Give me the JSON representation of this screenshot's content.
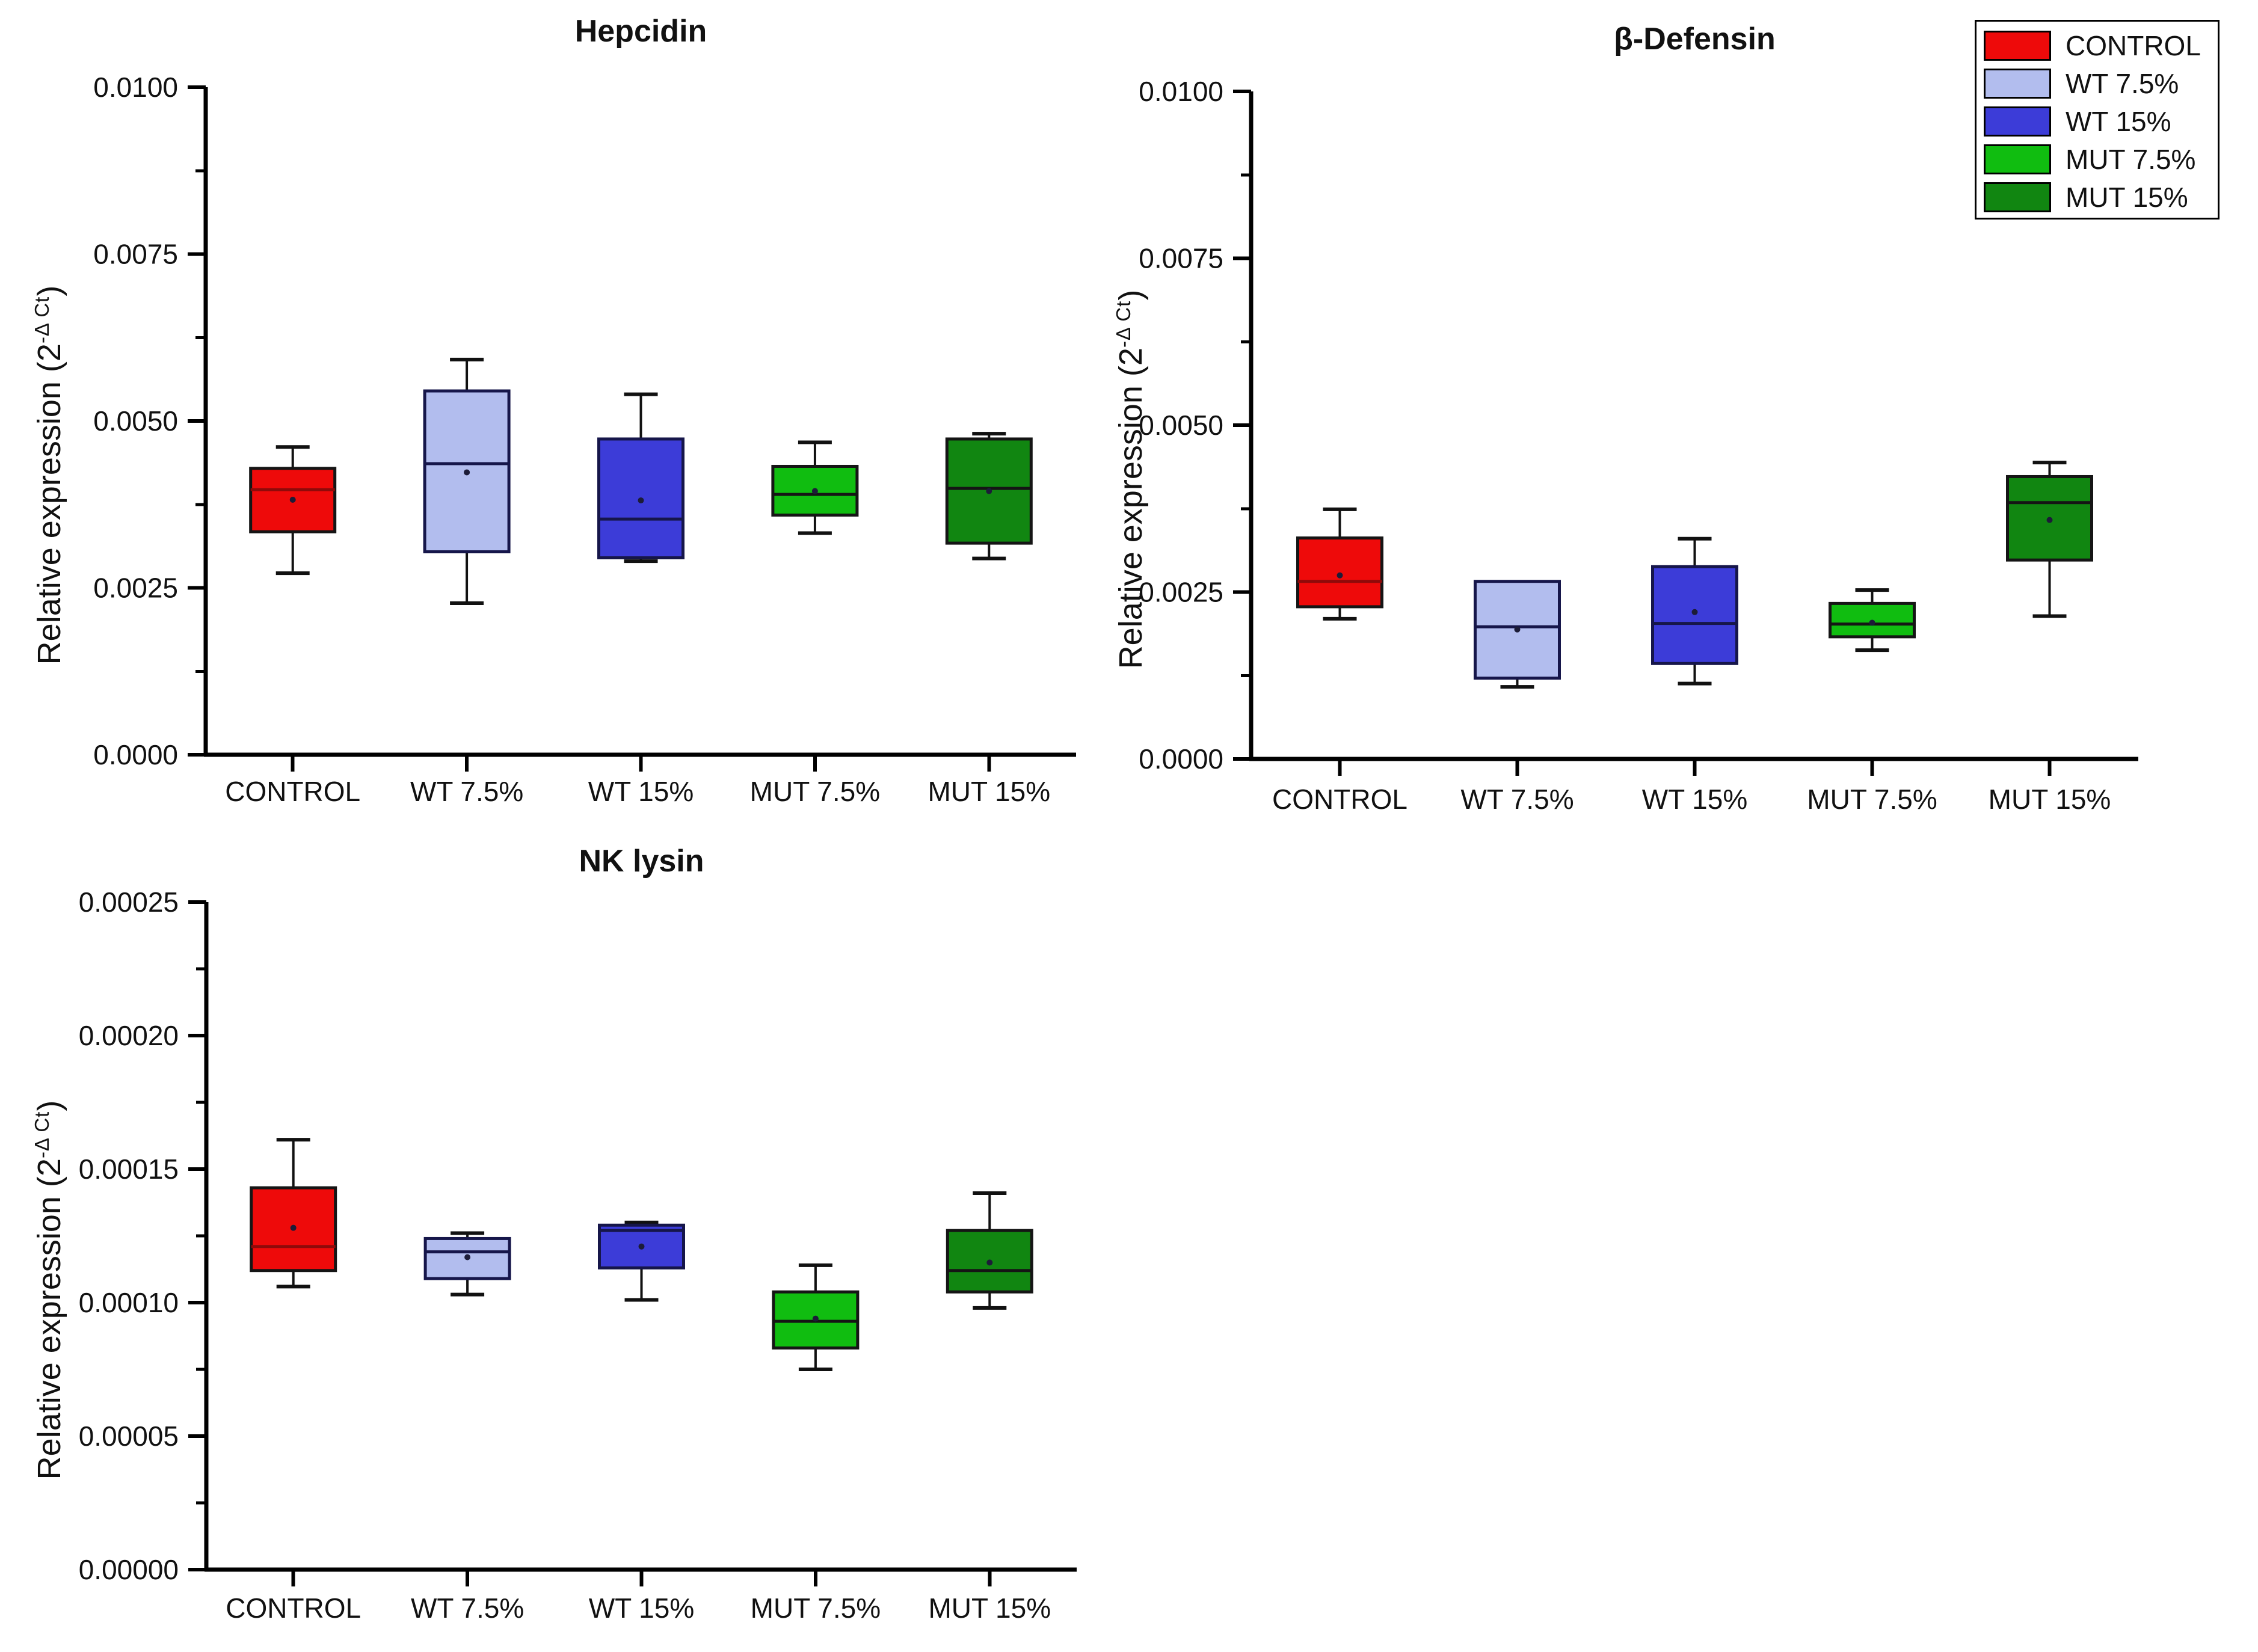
{
  "page": {
    "background": "#ffffff"
  },
  "ylabel": {
    "pre": "Relative expression (2",
    "sup": "-Δ Ct",
    "post": ")"
  },
  "legend": {
    "items": [
      {
        "label": "CONTROL",
        "color": "#ee0a0a"
      },
      {
        "label": "WT 7.5%",
        "color": "#b2bdee"
      },
      {
        "label": "WT 15%",
        "color": "#3c3cd8"
      },
      {
        "label": "MUT 7.5%",
        "color": "#10bd10"
      },
      {
        "label": "MUT 15%",
        "color": "#118611"
      }
    ]
  },
  "chart_data": [
    {
      "type": "boxplot",
      "title": "Hepcidin",
      "ylabel": "Relative expression (2^-ΔCt)",
      "ylim": [
        0,
        0.01
      ],
      "yticks": [
        0,
        0.0025,
        0.005,
        0.0075,
        0.01
      ],
      "ytick_labels": [
        "0.0000",
        "0.0025",
        "0.0050",
        "0.0075",
        "0.0100"
      ],
      "minor_ticks": true,
      "grid": false,
      "categories": [
        "CONTROL",
        "WT 7.5%",
        "WT 15%",
        "MUT 7.5%",
        "MUT 15%"
      ],
      "series": [
        {
          "group": "CONTROL",
          "color": "#ee0a0a",
          "whisker_low": 0.00272,
          "q1": 0.00334,
          "median": 0.00397,
          "q3": 0.00429,
          "whisker_high": 0.00461,
          "mean": 0.00382
        },
        {
          "group": "WT 7.5%",
          "color": "#b2bdee",
          "whisker_low": 0.00227,
          "q1": 0.00304,
          "median": 0.00436,
          "q3": 0.00545,
          "whisker_high": 0.00592,
          "mean": 0.00423
        },
        {
          "group": "WT 15%",
          "color": "#3c3cd8",
          "whisker_low": 0.0029,
          "q1": 0.00295,
          "median": 0.00353,
          "q3": 0.00473,
          "whisker_high": 0.0054,
          "mean": 0.00381
        },
        {
          "group": "MUT 7.5%",
          "color": "#10bd10",
          "whisker_low": 0.00332,
          "q1": 0.00359,
          "median": 0.0039,
          "q3": 0.00432,
          "whisker_high": 0.00468,
          "mean": 0.00395
        },
        {
          "group": "MUT 15%",
          "color": "#118611",
          "whisker_low": 0.00294,
          "q1": 0.00317,
          "median": 0.00399,
          "q3": 0.00473,
          "whisker_high": 0.00481,
          "mean": 0.00395
        }
      ]
    },
    {
      "type": "boxplot",
      "title": "β-Defensin",
      "ylabel": "Relative expression (2^-ΔCt)",
      "ylim": [
        0,
        0.01
      ],
      "yticks": [
        0,
        0.0025,
        0.005,
        0.0075,
        0.01
      ],
      "ytick_labels": [
        "0.0000",
        "0.0025",
        "0.0050",
        "0.0075",
        "0.0100"
      ],
      "minor_ticks": true,
      "grid": false,
      "categories": [
        "CONTROL",
        "WT 7.5%",
        "WT 15%",
        "MUT 7.5%",
        "MUT 15%"
      ],
      "series": [
        {
          "group": "CONTROL",
          "color": "#ee0a0a",
          "whisker_low": 0.0021,
          "q1": 0.00228,
          "median": 0.00266,
          "q3": 0.00331,
          "whisker_high": 0.00374,
          "mean": 0.00275
        },
        {
          "group": "WT 7.5%",
          "color": "#b2bdee",
          "whisker_low": 0.00108,
          "q1": 0.00121,
          "median": 0.00198,
          "q3": 0.00266,
          "whisker_high": 0.00266,
          "mean": 0.00194
        },
        {
          "group": "WT 15%",
          "color": "#3c3cd8",
          "whisker_low": 0.00113,
          "q1": 0.00143,
          "median": 0.00203,
          "q3": 0.00288,
          "whisker_high": 0.0033,
          "mean": 0.0022
        },
        {
          "group": "MUT 7.5%",
          "color": "#10bd10",
          "whisker_low": 0.00163,
          "q1": 0.00183,
          "median": 0.00202,
          "q3": 0.00233,
          "whisker_high": 0.00253,
          "mean": 0.00204
        },
        {
          "group": "MUT 15%",
          "color": "#118611",
          "whisker_low": 0.00214,
          "q1": 0.00298,
          "median": 0.00384,
          "q3": 0.00423,
          "whisker_high": 0.00444,
          "mean": 0.00358
        }
      ]
    },
    {
      "type": "boxplot",
      "title": "NK lysin",
      "ylabel": "Relative expression (2^-ΔCt)",
      "ylim": [
        0,
        0.00025
      ],
      "yticks": [
        0,
        5e-05,
        0.0001,
        0.00015,
        0.0002,
        0.00025
      ],
      "ytick_labels": [
        "0.00000",
        "0.00005",
        "0.00010",
        "0.00015",
        "0.00020",
        "0.00025"
      ],
      "minor_ticks": true,
      "grid": false,
      "categories": [
        "CONTROL",
        "WT 7.5%",
        "WT 15%",
        "MUT 7.5%",
        "MUT 15%"
      ],
      "series": [
        {
          "group": "CONTROL",
          "color": "#ee0a0a",
          "whisker_low": 0.000106,
          "q1": 0.000112,
          "median": 0.000121,
          "q3": 0.000143,
          "whisker_high": 0.000161,
          "mean": 0.000128
        },
        {
          "group": "WT 7.5%",
          "color": "#b2bdee",
          "whisker_low": 0.000103,
          "q1": 0.000109,
          "median": 0.000119,
          "q3": 0.000124,
          "whisker_high": 0.000126,
          "mean": 0.000117
        },
        {
          "group": "WT 15%",
          "color": "#3c3cd8",
          "whisker_low": 0.000101,
          "q1": 0.000113,
          "median": 0.000127,
          "q3": 0.000129,
          "whisker_high": 0.00013,
          "mean": 0.000121
        },
        {
          "group": "MUT 7.5%",
          "color": "#10bd10",
          "whisker_low": 7.5e-05,
          "q1": 8.3e-05,
          "median": 9.3e-05,
          "q3": 0.000104,
          "whisker_high": 0.000114,
          "mean": 9.4e-05
        },
        {
          "group": "MUT 15%",
          "color": "#118611",
          "whisker_low": 9.8e-05,
          "q1": 0.000104,
          "median": 0.000112,
          "q3": 0.000127,
          "whisker_high": 0.000141,
          "mean": 0.000115
        }
      ]
    }
  ]
}
